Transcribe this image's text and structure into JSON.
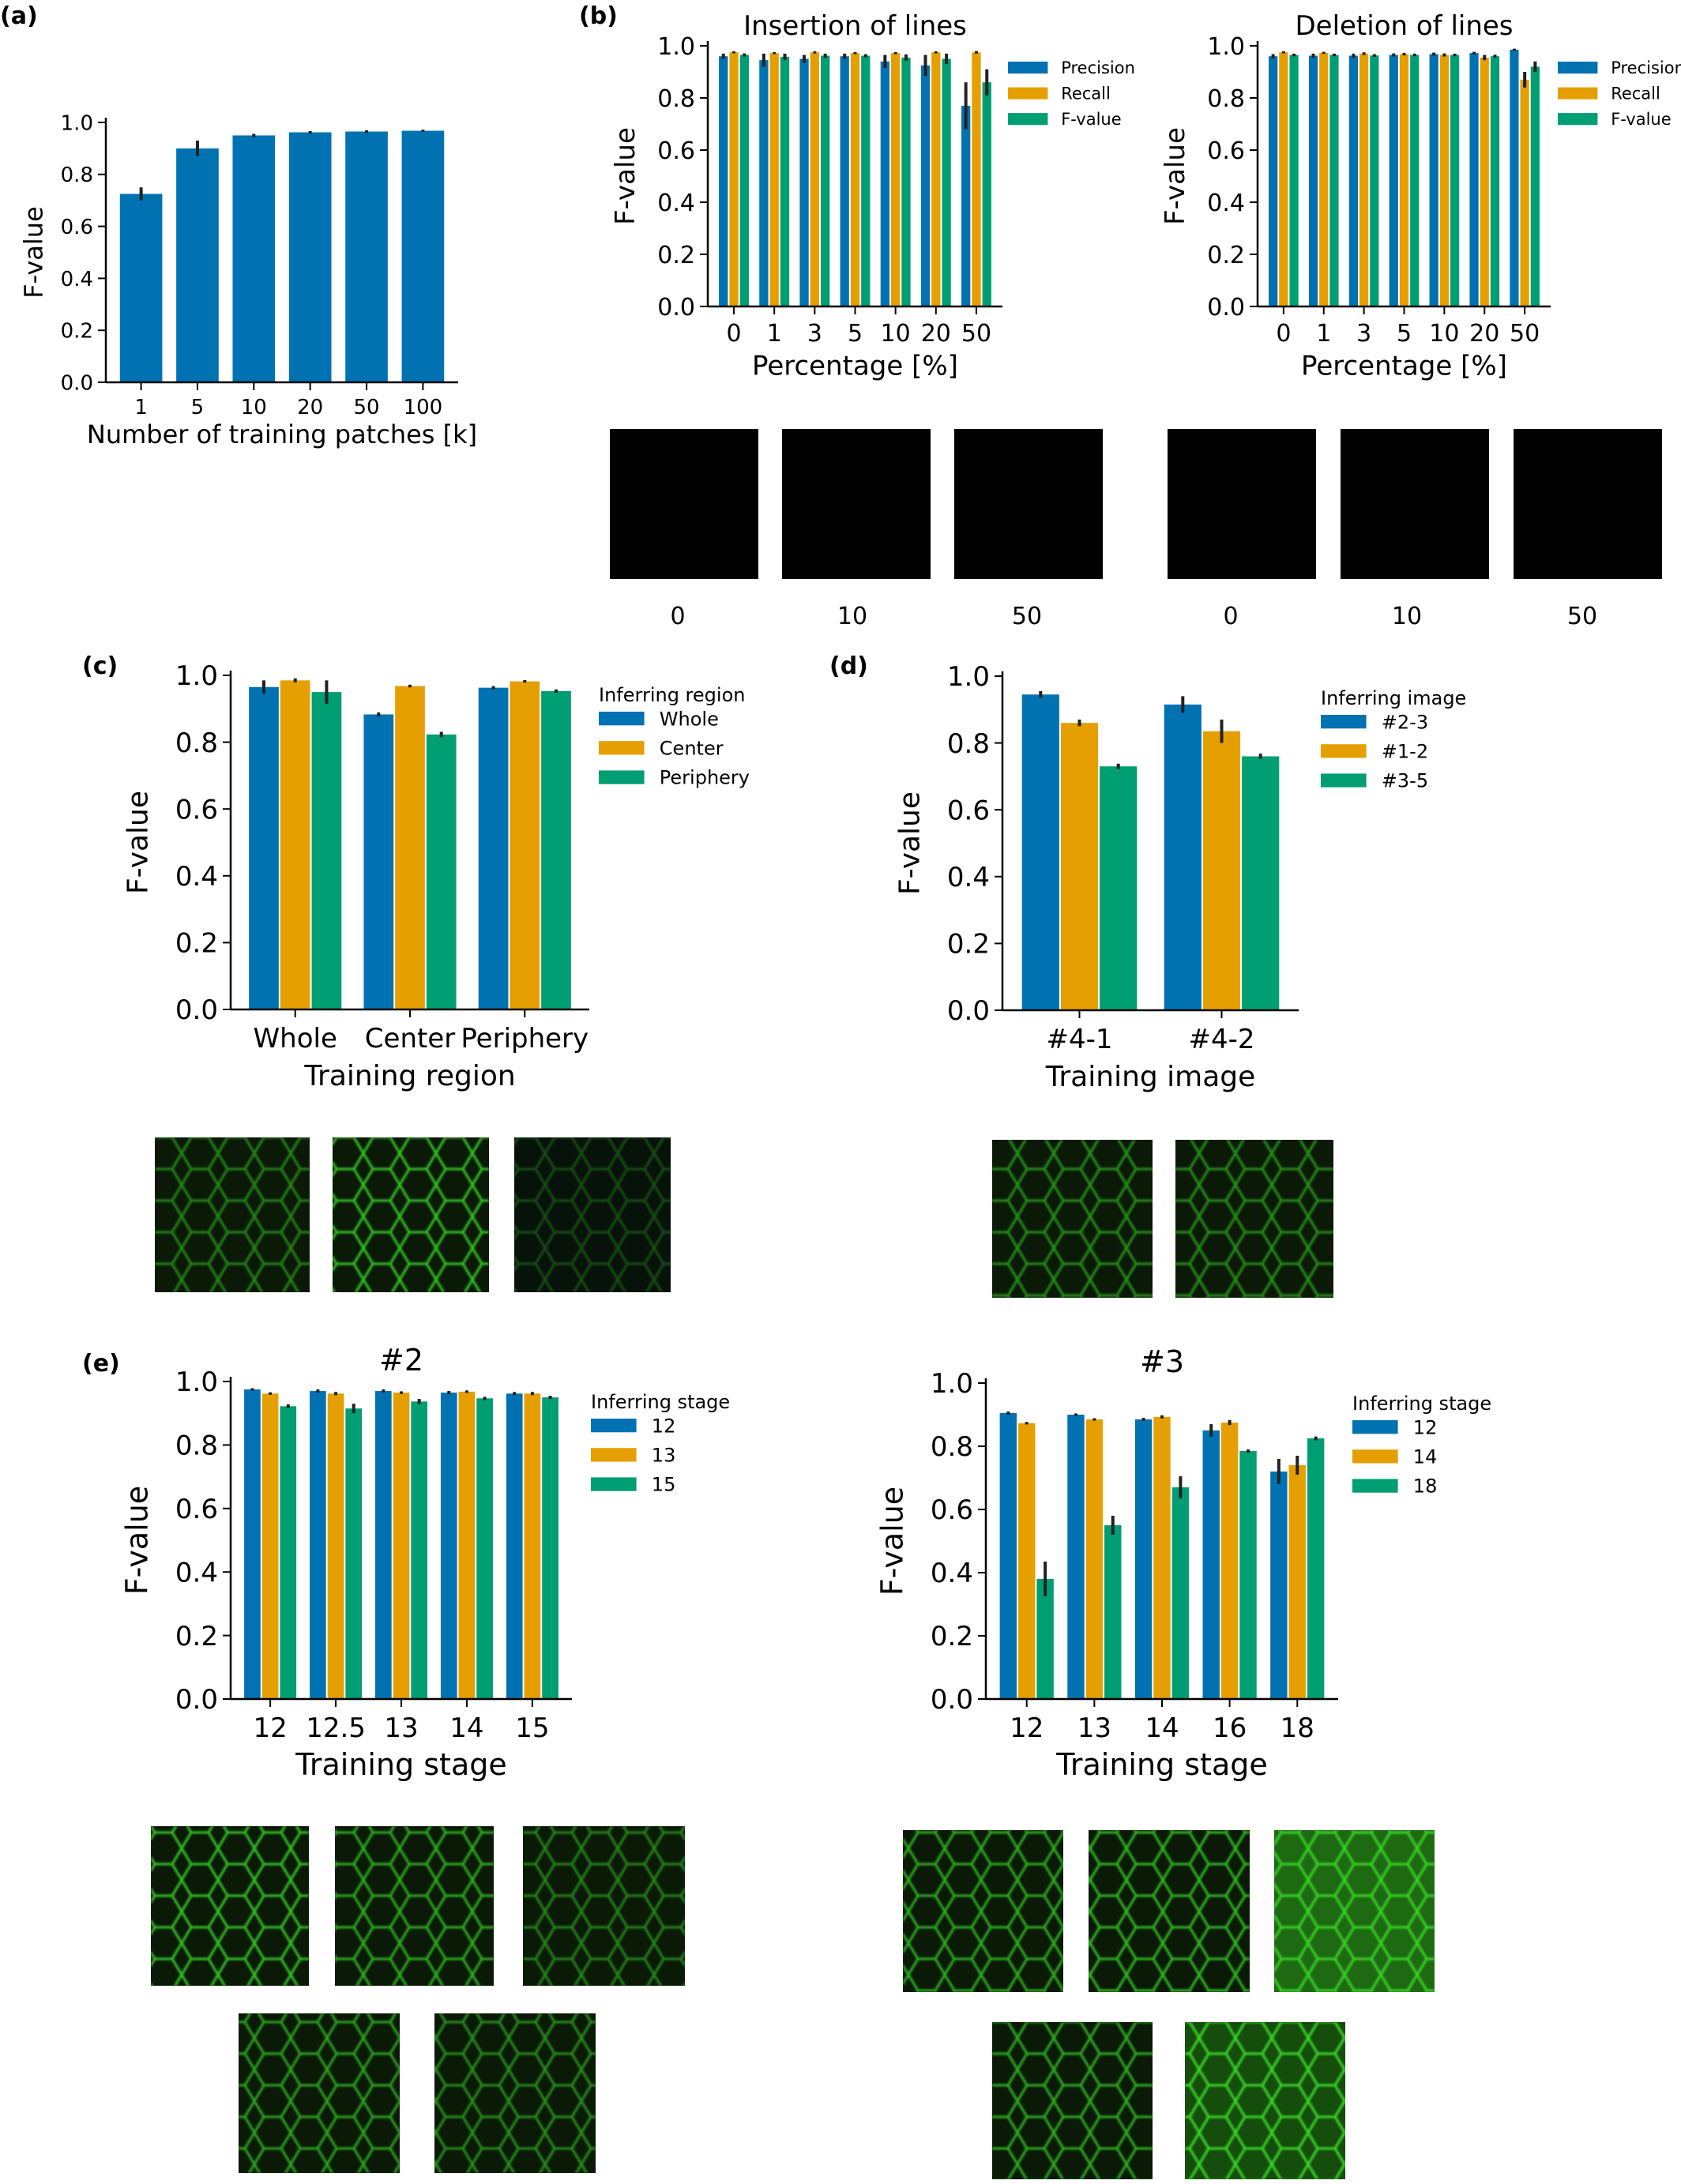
{
  "colors": {
    "blue": "#0072b2",
    "orange": "#e69f00",
    "green": "#009e73",
    "errorbar": "#222222",
    "micrograph_bg": "#0a1a07",
    "micrograph_fg": "#39e12a"
  },
  "chart_data": [
    {
      "id": "a",
      "panel_label": "(a)",
      "type": "bar",
      "title": "",
      "xlabel": "Number of training patches [k]",
      "ylabel": "F-value",
      "ylim": [
        0,
        1.0
      ],
      "yticks": [
        "0.0",
        "0.2",
        "0.4",
        "0.6",
        "0.8",
        "1.0"
      ],
      "categories": [
        "1",
        "5",
        "10",
        "20",
        "50",
        "100"
      ],
      "series": [
        {
          "color": "#0072b2",
          "values": [
            0.725,
            0.9,
            0.95,
            0.962,
            0.965,
            0.968
          ],
          "errors": [
            0.025,
            0.03,
            0.006,
            0.005,
            0.005,
            0.004
          ]
        }
      ],
      "legend": null,
      "grid": false
    },
    {
      "id": "b1",
      "panel_label": "(b)",
      "type": "bar",
      "title": "Insertion of lines",
      "xlabel": "Percentage [%]",
      "ylabel": "F-value",
      "ylim": [
        0,
        1.0
      ],
      "yticks": [
        "0.0",
        "0.2",
        "0.4",
        "0.6",
        "0.8",
        "1.0"
      ],
      "categories": [
        "0",
        "1",
        "3",
        "5",
        "10",
        "20",
        "50"
      ],
      "series": [
        {
          "name": "Precision",
          "color": "#0072b2",
          "values": [
            0.96,
            0.945,
            0.95,
            0.96,
            0.94,
            0.925,
            0.77
          ],
          "errors": [
            0.01,
            0.025,
            0.015,
            0.01,
            0.025,
            0.04,
            0.09
          ]
        },
        {
          "name": "Recall",
          "color": "#e69f00",
          "values": [
            0.975,
            0.972,
            0.975,
            0.972,
            0.972,
            0.975,
            0.975
          ],
          "errors": [
            0.004,
            0.004,
            0.004,
            0.004,
            0.004,
            0.004,
            0.005
          ]
        },
        {
          "name": "F-value",
          "color": "#009e73",
          "values": [
            0.965,
            0.958,
            0.962,
            0.962,
            0.955,
            0.95,
            0.86
          ],
          "errors": [
            0.006,
            0.012,
            0.008,
            0.006,
            0.012,
            0.02,
            0.05
          ]
        }
      ],
      "legend": "top-right",
      "grid": false
    },
    {
      "id": "b2",
      "panel_label": "",
      "type": "bar",
      "title": "Deletion of lines",
      "xlabel": "Percentage [%]",
      "ylabel": "F-value",
      "ylim": [
        0,
        1.0
      ],
      "yticks": [
        "0.0",
        "0.2",
        "0.4",
        "0.6",
        "0.8",
        "1.0"
      ],
      "categories": [
        "0",
        "1",
        "3",
        "5",
        "10",
        "20",
        "50"
      ],
      "series": [
        {
          "name": "Precision",
          "color": "#0072b2",
          "values": [
            0.96,
            0.962,
            0.962,
            0.965,
            0.968,
            0.972,
            0.985
          ],
          "errors": [
            0.008,
            0.008,
            0.008,
            0.006,
            0.006,
            0.005,
            0.004
          ]
        },
        {
          "name": "Recall",
          "color": "#e69f00",
          "values": [
            0.975,
            0.973,
            0.97,
            0.968,
            0.965,
            0.955,
            0.87
          ],
          "errors": [
            0.004,
            0.004,
            0.005,
            0.005,
            0.006,
            0.01,
            0.03
          ]
        },
        {
          "name": "F-value",
          "color": "#009e73",
          "values": [
            0.965,
            0.965,
            0.963,
            0.965,
            0.965,
            0.96,
            0.92
          ],
          "errors": [
            0.005,
            0.005,
            0.005,
            0.005,
            0.005,
            0.006,
            0.02
          ]
        }
      ],
      "legend": "top-right",
      "grid": false
    },
    {
      "id": "c",
      "panel_label": "(c)",
      "type": "bar",
      "title": "",
      "xlabel": "Training region",
      "ylabel": "F-value",
      "ylim": [
        0,
        1.0
      ],
      "yticks": [
        "0.0",
        "0.2",
        "0.4",
        "0.6",
        "0.8",
        "1.0"
      ],
      "categories": [
        "Whole",
        "Center",
        "Periphery"
      ],
      "legend_title": "Inferring region",
      "series": [
        {
          "name": "Whole",
          "color": "#0072b2",
          "values": [
            0.965,
            0.883,
            0.963
          ],
          "errors": [
            0.02,
            0.006,
            0.005
          ]
        },
        {
          "name": "Center",
          "color": "#e69f00",
          "values": [
            0.985,
            0.968,
            0.982
          ],
          "errors": [
            0.006,
            0.004,
            0.004
          ]
        },
        {
          "name": "Periphery",
          "color": "#009e73",
          "values": [
            0.95,
            0.823,
            0.953
          ],
          "errors": [
            0.035,
            0.008,
            0.005
          ]
        }
      ],
      "legend": "right",
      "grid": false
    },
    {
      "id": "d",
      "panel_label": "(d)",
      "type": "bar",
      "title": "",
      "xlabel": "Training image",
      "ylabel": "F-value",
      "ylim": [
        0,
        1.0
      ],
      "yticks": [
        "0.0",
        "0.2",
        "0.4",
        "0.6",
        "0.8",
        "1.0"
      ],
      "categories": [
        "#4-1",
        "#4-2"
      ],
      "legend_title": "Inferring image",
      "series": [
        {
          "name": "#2-3",
          "color": "#0072b2",
          "values": [
            0.945,
            0.915
          ],
          "errors": [
            0.01,
            0.025
          ]
        },
        {
          "name": "#1-2",
          "color": "#e69f00",
          "values": [
            0.86,
            0.835
          ],
          "errors": [
            0.01,
            0.035
          ]
        },
        {
          "name": "#3-5",
          "color": "#009e73",
          "values": [
            0.73,
            0.76
          ],
          "errors": [
            0.008,
            0.008
          ]
        }
      ],
      "legend": "right",
      "grid": false
    },
    {
      "id": "e1",
      "panel_label": "(e)",
      "type": "bar",
      "title": "#2",
      "xlabel": "Training stage",
      "ylabel": "F-value",
      "ylim": [
        0,
        1.0
      ],
      "yticks": [
        "0.0",
        "0.2",
        "0.4",
        "0.6",
        "0.8",
        "1.0"
      ],
      "categories": [
        "12",
        "12.5",
        "13",
        "14",
        "15"
      ],
      "legend_title": "Inferring stage",
      "series": [
        {
          "name": "12",
          "color": "#0072b2",
          "values": [
            0.975,
            0.97,
            0.97,
            0.965,
            0.962
          ],
          "errors": [
            0.004,
            0.005,
            0.005,
            0.005,
            0.005
          ]
        },
        {
          "name": "13",
          "color": "#e69f00",
          "values": [
            0.962,
            0.962,
            0.965,
            0.968,
            0.962
          ],
          "errors": [
            0.004,
            0.005,
            0.004,
            0.004,
            0.005
          ]
        },
        {
          "name": "15",
          "color": "#009e73",
          "values": [
            0.922,
            0.915,
            0.937,
            0.947,
            0.95
          ],
          "errors": [
            0.006,
            0.015,
            0.008,
            0.005,
            0.005
          ]
        }
      ],
      "legend": "right",
      "grid": false
    },
    {
      "id": "e2",
      "panel_label": "",
      "type": "bar",
      "title": "#3",
      "xlabel": "Training stage",
      "ylabel": "F-value",
      "ylim": [
        0,
        1.0
      ],
      "yticks": [
        "0.0",
        "0.2",
        "0.4",
        "0.6",
        "0.8",
        "1.0"
      ],
      "categories": [
        "12",
        "13",
        "14",
        "16",
        "18"
      ],
      "legend_title": "Inferring stage",
      "series": [
        {
          "name": "12",
          "color": "#0072b2",
          "values": [
            0.905,
            0.9,
            0.885,
            0.85,
            0.72
          ],
          "errors": [
            0.005,
            0.004,
            0.005,
            0.02,
            0.04
          ]
        },
        {
          "name": "14",
          "color": "#e69f00",
          "values": [
            0.873,
            0.885,
            0.893,
            0.875,
            0.74
          ],
          "errors": [
            0.004,
            0.004,
            0.005,
            0.008,
            0.03
          ]
        },
        {
          "name": "18",
          "color": "#009e73",
          "values": [
            0.38,
            0.55,
            0.67,
            0.785,
            0.825
          ],
          "errors": [
            0.055,
            0.03,
            0.035,
            0.005,
            0.006
          ]
        }
      ],
      "legend": "right",
      "grid": false
    }
  ],
  "thumbnail_captions": {
    "b_insertion": [
      "0",
      "10",
      "50"
    ],
    "b_deletion": [
      "0",
      "10",
      "50"
    ]
  }
}
